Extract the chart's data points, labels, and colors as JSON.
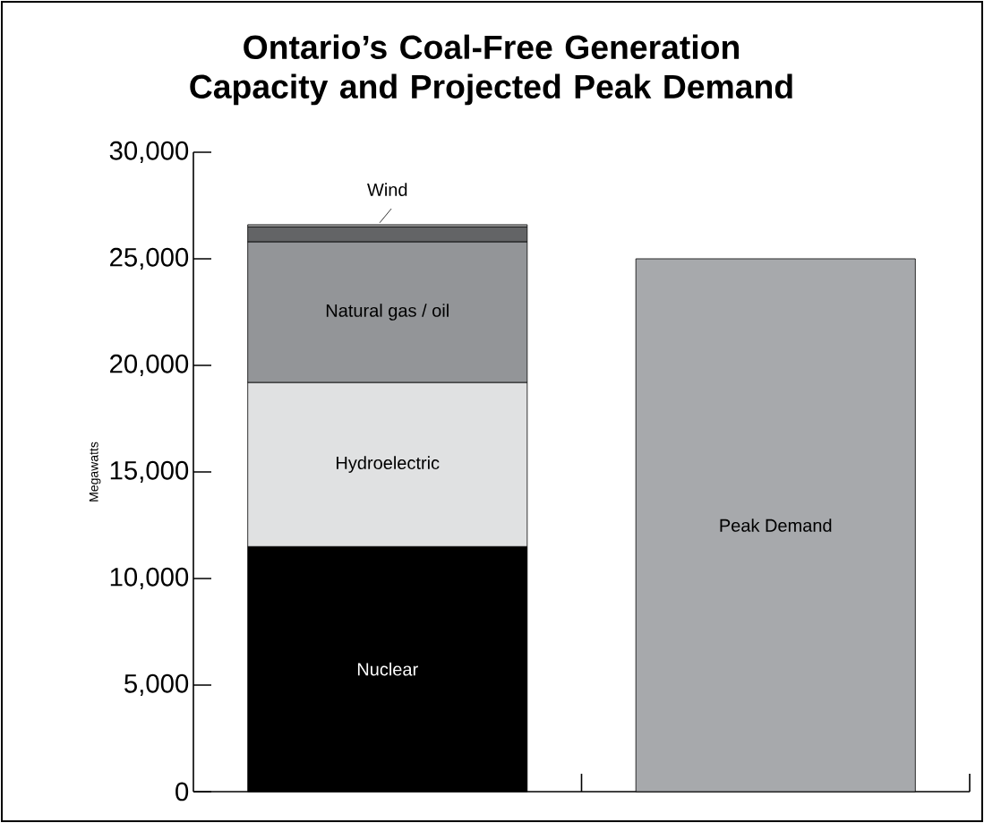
{
  "chart_data": {
    "type": "bar",
    "title": "Ontario’s Coal-Free Generation Capacity and Projected Peak Demand",
    "ylabel": "Megawatts",
    "categories": [
      null,
      null
    ],
    "stacked": true,
    "series": [
      {
        "name": "Nuclear",
        "color": "#000000",
        "values": [
          11500,
          null
        ]
      },
      {
        "name": "Hydroelectric",
        "color": "#e0e1e2",
        "values": [
          7700,
          null
        ]
      },
      {
        "name": "Natural gas / oil",
        "color": "#939598",
        "values": [
          6600,
          null
        ]
      },
      {
        "color": "#636466",
        "values": [
          700,
          null
        ]
      },
      {
        "name": "Wind",
        "color": "#b0b0b0",
        "values": [
          100,
          null
        ]
      },
      {
        "name": "Peak Demand",
        "color": "#a7a9ac",
        "values": [
          null,
          25000
        ]
      }
    ],
    "ylim": [
      0,
      30000
    ],
    "yticks": [
      0,
      {
        "value": 5000,
        "label": "5,000"
      },
      {
        "value": 10000,
        "label": "10,000"
      },
      {
        "value": 15000,
        "label": "15,000"
      },
      {
        "value": 20000,
        "label": "20,000"
      },
      {
        "value": 25000,
        "label": "25,000"
      },
      {
        "value": 30000,
        "label": "30,000"
      }
    ]
  }
}
